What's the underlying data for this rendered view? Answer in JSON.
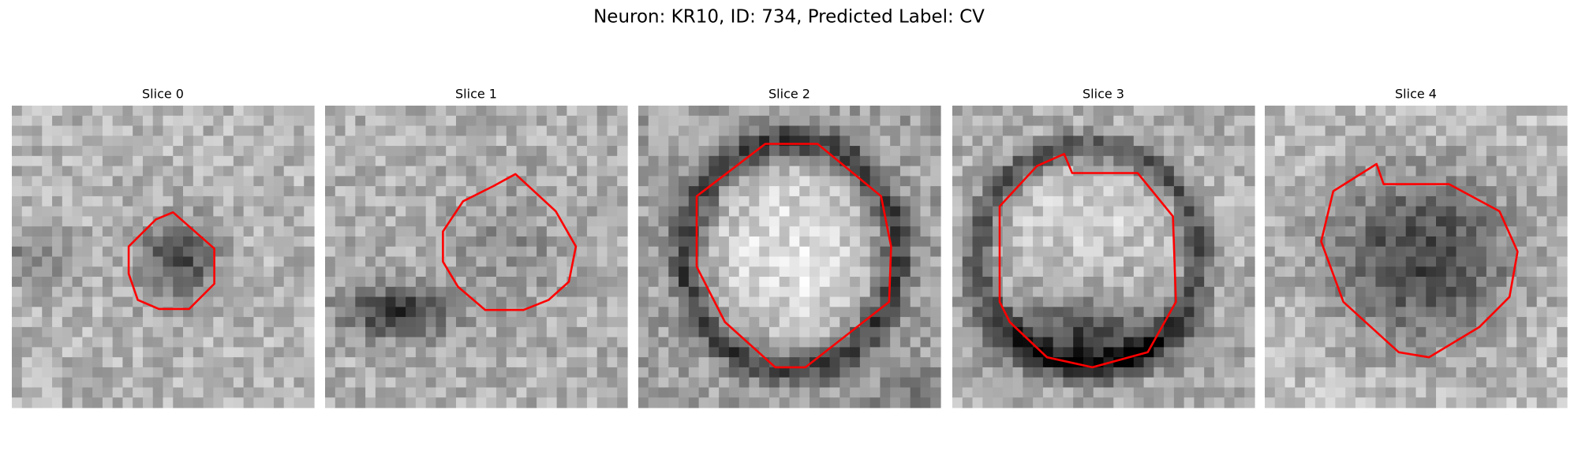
{
  "title": "Neuron: KR10, ID: 734, Predicted Label: CV",
  "panels": [
    {
      "title": "Slice 0"
    },
    {
      "title": "Slice 1"
    },
    {
      "title": "Slice 2"
    },
    {
      "title": "Slice 3"
    },
    {
      "title": "Slice 4"
    }
  ]
}
